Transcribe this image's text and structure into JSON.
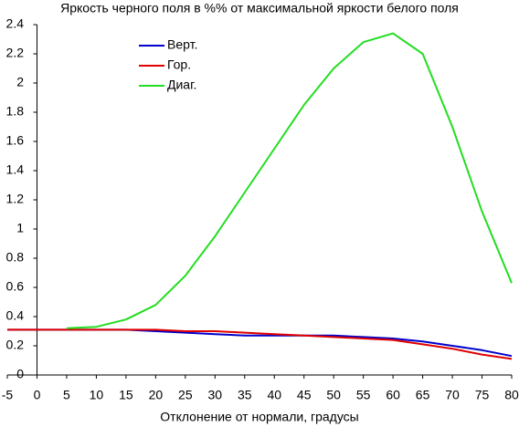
{
  "chart_data": {
    "type": "line",
    "title": "Яркость черного поля в %% от максимальной яркости белого поля",
    "x_label": "Отклонение от нормали, градусы",
    "x": [
      -5,
      0,
      5,
      10,
      15,
      20,
      25,
      30,
      35,
      40,
      45,
      50,
      55,
      60,
      65,
      70,
      75,
      80
    ],
    "series": [
      {
        "name": "Верт.",
        "color": "#0000cc",
        "values": [
          0.31,
          0.31,
          0.31,
          0.31,
          0.31,
          0.3,
          0.29,
          0.28,
          0.27,
          0.27,
          0.27,
          0.27,
          0.26,
          0.25,
          0.23,
          0.2,
          0.17,
          0.13
        ]
      },
      {
        "name": "Гор.",
        "color": "#e00000",
        "values": [
          0.31,
          0.31,
          0.31,
          0.31,
          0.31,
          0.31,
          0.3,
          0.3,
          0.29,
          0.28,
          0.27,
          0.26,
          0.25,
          0.24,
          0.21,
          0.18,
          0.14,
          0.11
        ]
      },
      {
        "name": "Диаг.",
        "color": "#22dd22",
        "values": [
          null,
          null,
          0.32,
          0.33,
          0.38,
          0.48,
          0.68,
          0.95,
          1.25,
          1.55,
          1.85,
          2.1,
          2.28,
          2.34,
          2.2,
          1.7,
          1.12,
          0.63
        ]
      }
    ],
    "xlim": [
      -5,
      80
    ],
    "xticks": [
      -5,
      0,
      5,
      10,
      15,
      20,
      25,
      30,
      35,
      40,
      45,
      50,
      55,
      60,
      65,
      70,
      75,
      80
    ],
    "ylim": [
      0,
      2.4
    ],
    "yticks": [
      0,
      0.2,
      0.4,
      0.6,
      0.8,
      1,
      1.2,
      1.4,
      1.6,
      1.8,
      2,
      2.2,
      2.4
    ],
    "legend": "upper left",
    "grid": false
  }
}
